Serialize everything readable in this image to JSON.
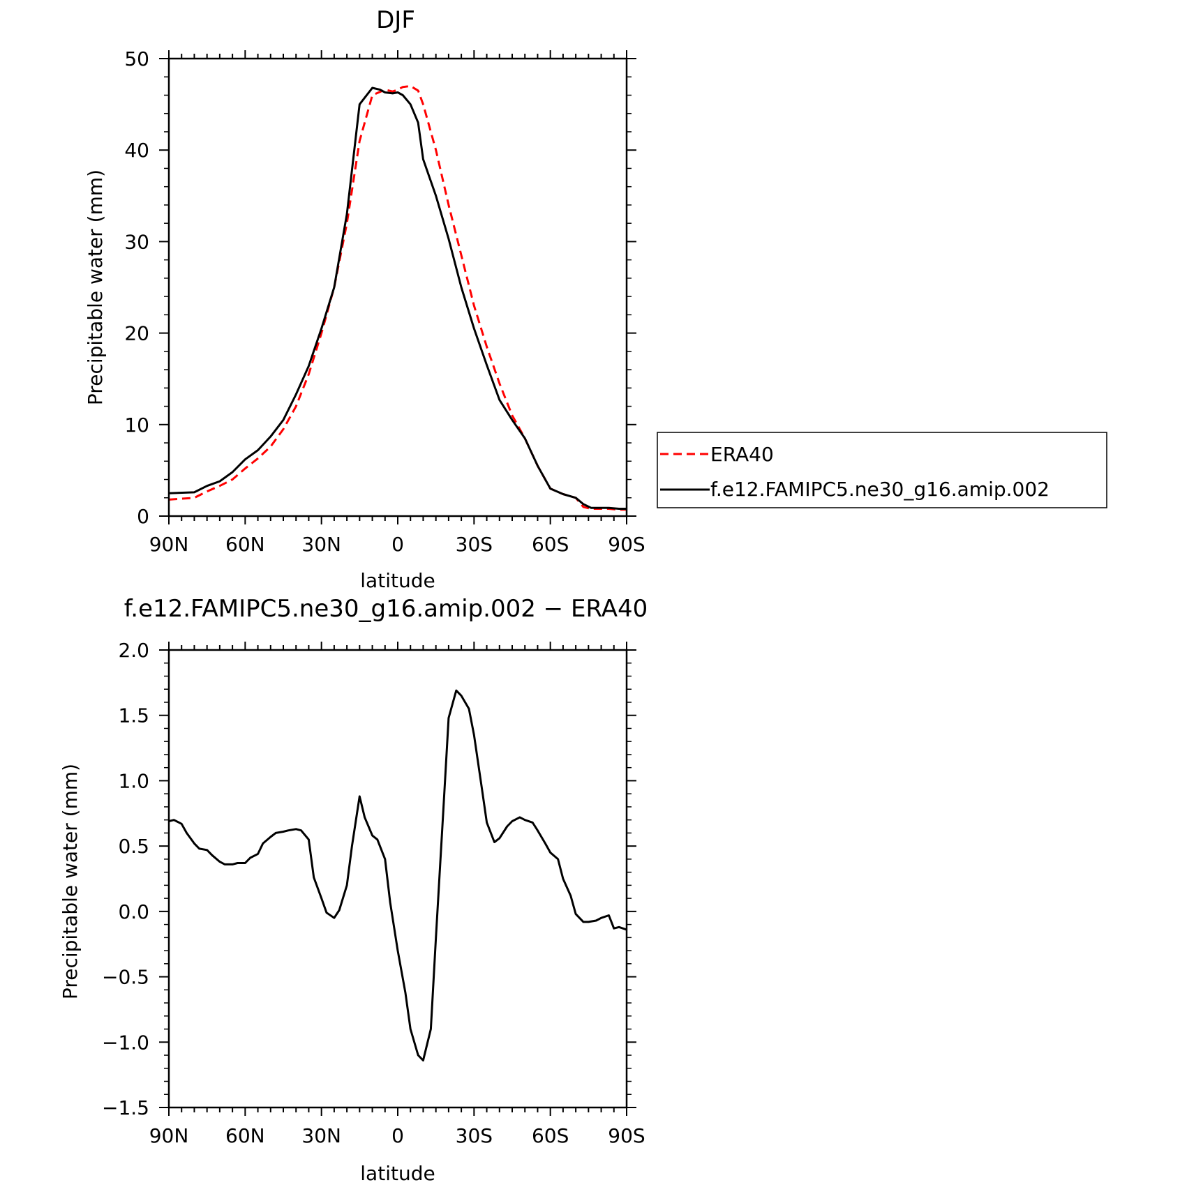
{
  "chart_data": [
    {
      "type": "line",
      "title": "DJF",
      "xlabel": "latitude",
      "ylabel": "Precipitable water (mm)",
      "xlim": [
        90,
        -90
      ],
      "ylim": [
        0,
        50
      ],
      "xticks": [
        90,
        60,
        30,
        0,
        -30,
        -60,
        -90
      ],
      "xtick_labels": [
        "90N",
        "60N",
        "30N",
        "0",
        "30S",
        "60S",
        "90S"
      ],
      "yticks": [
        0,
        10,
        20,
        30,
        40,
        50
      ],
      "ytick_labels": [
        "0",
        "10",
        "20",
        "30",
        "40",
        "50"
      ],
      "legend_position": "right",
      "series": [
        {
          "name": "ERA40",
          "color": "#ff0000",
          "dash": "dashed",
          "x": [
            90,
            80,
            75,
            70,
            65,
            60,
            55,
            50,
            45,
            40,
            35,
            30,
            25,
            20,
            15,
            10,
            5,
            2,
            0,
            -2,
            -5,
            -8,
            -10,
            -15,
            -20,
            -25,
            -30,
            -35,
            -40,
            -45,
            -50,
            -55,
            -60,
            -65,
            -70,
            -73,
            -76,
            -80,
            -83,
            -87,
            -90
          ],
          "y": [
            1.8,
            2.0,
            2.7,
            3.3,
            4.0,
            5.2,
            6.3,
            7.6,
            9.5,
            12.0,
            15.5,
            20.0,
            25.0,
            32.0,
            41.0,
            46.0,
            46.6,
            46.4,
            46.6,
            46.9,
            47.0,
            46.5,
            45.0,
            40.0,
            34.0,
            28.5,
            23.0,
            18.5,
            14.5,
            11.0,
            8.5,
            5.5,
            3.0,
            2.4,
            2.0,
            1.0,
            0.8,
            0.8,
            0.8,
            0.7,
            0.7
          ]
        },
        {
          "name": "f.e12.FAMIPC5.ne30_g16.amip.002",
          "color": "#000000",
          "dash": "solid",
          "x": [
            90,
            80,
            75,
            70,
            65,
            60,
            55,
            50,
            45,
            40,
            35,
            30,
            25,
            20,
            15,
            10,
            7,
            5,
            2,
            0,
            -2,
            -5,
            -8,
            -10,
            -15,
            -20,
            -25,
            -30,
            -35,
            -40,
            -45,
            -50,
            -55,
            -60,
            -65,
            -70,
            -73,
            -76,
            -80,
            -83,
            -87,
            -90
          ],
          "y": [
            2.5,
            2.6,
            3.3,
            3.8,
            4.8,
            6.2,
            7.2,
            8.7,
            10.5,
            13.3,
            16.4,
            20.5,
            25.0,
            33.0,
            45.0,
            46.8,
            46.6,
            46.3,
            46.2,
            46.3,
            46.0,
            45.0,
            43.0,
            39.0,
            35.0,
            30.3,
            25.0,
            20.5,
            16.5,
            12.7,
            10.5,
            8.5,
            5.5,
            3.0,
            2.4,
            2.0,
            1.3,
            0.9,
            0.9,
            0.9,
            0.8,
            0.8
          ]
        }
      ]
    },
    {
      "type": "line",
      "title": "f.e12.FAMIPC5.ne30_g16.amip.002 − ERA40",
      "xlabel": "latitude",
      "ylabel": "Precipitable water (mm)",
      "xlim": [
        90,
        -90
      ],
      "ylim": [
        -1.5,
        2.0
      ],
      "xticks": [
        90,
        60,
        30,
        0,
        -30,
        -60,
        -90
      ],
      "xtick_labels": [
        "90N",
        "60N",
        "30N",
        "0",
        "30S",
        "60S",
        "90S"
      ],
      "yticks": [
        -1.5,
        -1.0,
        -0.5,
        0.0,
        0.5,
        1.0,
        1.5,
        2.0
      ],
      "ytick_labels": [
        "−1.5",
        "−1.0",
        "−0.5",
        "0.0",
        "0.5",
        "1.0",
        "1.5",
        "2.0"
      ],
      "series": [
        {
          "color": "#000000",
          "dash": "solid",
          "x": [
            90,
            88,
            85,
            83,
            80,
            78,
            75,
            73,
            70,
            68,
            65,
            63,
            60,
            58,
            55,
            53,
            50,
            48,
            45,
            43,
            40,
            38,
            35,
            33,
            30,
            28,
            25,
            23,
            20,
            18,
            15,
            13,
            10,
            8,
            5,
            3,
            0,
            -3,
            -5,
            -8,
            -10,
            -13,
            -15,
            -18,
            -20,
            -23,
            -25,
            -28,
            -30,
            -33,
            -35,
            -38,
            -40,
            -43,
            -45,
            -48,
            -50,
            -53,
            -55,
            -58,
            -60,
            -63,
            -65,
            -68,
            -70,
            -73,
            -75,
            -78,
            -80,
            -83,
            -85,
            -87,
            -90
          ],
          "y": [
            0.69,
            0.7,
            0.67,
            0.6,
            0.52,
            0.48,
            0.47,
            0.43,
            0.38,
            0.36,
            0.36,
            0.37,
            0.37,
            0.41,
            0.44,
            0.52,
            0.57,
            0.6,
            0.61,
            0.62,
            0.63,
            0.62,
            0.55,
            0.26,
            0.1,
            -0.01,
            -0.05,
            0.01,
            0.2,
            0.5,
            0.88,
            0.72,
            0.58,
            0.55,
            0.4,
            0.07,
            -0.3,
            -0.62,
            -0.9,
            -1.1,
            -1.14,
            -0.9,
            -0.2,
            0.8,
            1.48,
            1.69,
            1.65,
            1.55,
            1.35,
            0.95,
            0.68,
            0.53,
            0.56,
            0.65,
            0.69,
            0.72,
            0.7,
            0.68,
            0.62,
            0.52,
            0.45,
            0.4,
            0.25,
            0.12,
            -0.02,
            -0.08,
            -0.08,
            -0.07,
            -0.05,
            -0.03,
            -0.13,
            -0.12,
            -0.14
          ]
        }
      ]
    }
  ]
}
